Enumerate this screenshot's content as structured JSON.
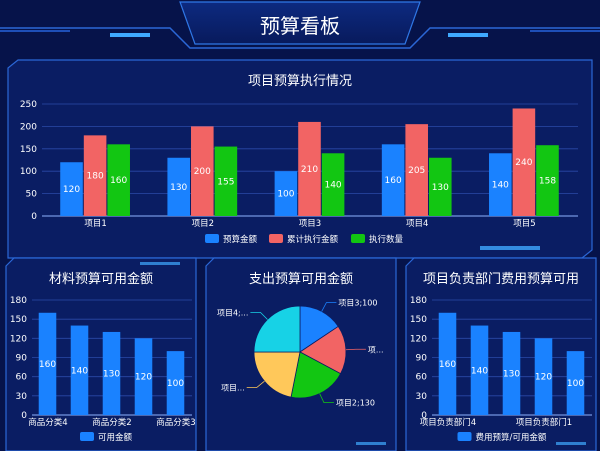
{
  "page": {
    "title": "预算看板"
  },
  "colors": {
    "background": "#06134a",
    "panel": "#0a1d63",
    "panel_border": "#2b67d6",
    "blue": "#1a82ff",
    "red": "#f26464",
    "green": "#12c612",
    "cyan": "#17d2e6",
    "orange": "#ffc85a",
    "accent": "#3fa9ff"
  },
  "chart_data": [
    {
      "id": "main",
      "type": "bar",
      "title": "项目预算执行情况",
      "categories": [
        "项目1",
        "项目2",
        "项目3",
        "项目4",
        "项目5"
      ],
      "series": [
        {
          "name": "预算金额",
          "values": [
            120,
            130,
            100,
            160,
            140
          ]
        },
        {
          "name": "累计执行金额",
          "values": [
            180,
            200,
            210,
            205,
            240
          ]
        },
        {
          "name": "执行数量",
          "values": [
            160,
            155,
            140,
            130,
            158
          ]
        }
      ],
      "yticks": [
        0,
        50,
        100,
        150,
        200,
        250
      ],
      "ylim": [
        0,
        250
      ],
      "legend": "bottom",
      "grid": true
    },
    {
      "id": "material",
      "type": "bar",
      "title": "材料预算可用金额",
      "categories": [
        "商品分类4",
        "",
        "商品分类2",
        "",
        "商品分类3"
      ],
      "series": [
        {
          "name": "可用金额",
          "values": [
            160,
            140,
            130,
            120,
            100
          ]
        }
      ],
      "yticks": [
        0,
        30,
        60,
        90,
        120,
        150,
        180
      ],
      "ylim": [
        0,
        180
      ],
      "legend": "bottom",
      "grid": true
    },
    {
      "id": "expense",
      "type": "pie",
      "title": "支出预算可用金额",
      "slices": [
        {
          "label": "项目3;100",
          "value": 100
        },
        {
          "label": "项...",
          "value": 110
        },
        {
          "label": "项目2;130",
          "value": 130
        },
        {
          "label": "项目...",
          "value": 140
        },
        {
          "label": "项目4;...",
          "value": 160
        }
      ]
    },
    {
      "id": "dept",
      "type": "bar",
      "title": "项目负责部门费用预算可用",
      "categories": [
        "项目负责部门4",
        "",
        "",
        "项目负责部门1",
        ""
      ],
      "series": [
        {
          "name": "费用预算/可用金额",
          "values": [
            160,
            140,
            130,
            120,
            100
          ]
        }
      ],
      "yticks": [
        0,
        30,
        60,
        90,
        120,
        150,
        180
      ],
      "ylim": [
        0,
        180
      ],
      "legend": "bottom",
      "grid": true
    }
  ]
}
